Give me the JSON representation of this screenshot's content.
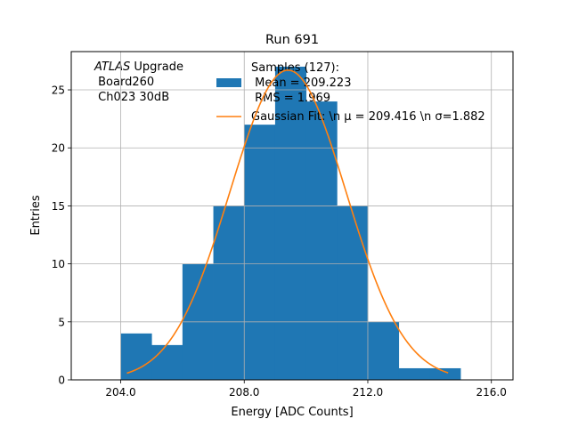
{
  "chart_data": {
    "type": "bar",
    "title": "Run 691",
    "xlabel": "Energy [ADC Counts]",
    "ylabel": "Entries",
    "xlim": [
      202.4,
      216.7
    ],
    "ylim": [
      0,
      28.3
    ],
    "xticks": [
      204.0,
      208.0,
      212.0,
      216.0
    ],
    "xtick_labels": [
      "204.0",
      "208.0",
      "212.0",
      "216.0"
    ],
    "yticks": [
      0,
      5,
      10,
      15,
      20,
      25
    ],
    "ytick_labels": [
      "0",
      "5",
      "10",
      "15",
      "20",
      "25"
    ],
    "grid": true,
    "legend_position": "top-right",
    "colors": {
      "histogram": "#1f77b4",
      "fit": "#ff7f0e"
    },
    "annotation": [
      "ATLAS Upgrade",
      " Board260",
      " Ch023 30dB"
    ],
    "annotation_italic_word": "ATLAS",
    "annotation_rest": " Upgrade",
    "histogram": {
      "name": [
        "Samples (127):",
        " Mean = 209.223",
        " RMS = 1.969"
      ],
      "bin_edges": [
        204,
        205,
        206,
        207,
        208,
        209,
        210,
        211,
        212,
        213,
        214,
        215
      ],
      "counts": [
        4,
        3,
        10,
        15,
        22,
        27,
        24,
        15,
        5,
        1,
        1
      ]
    },
    "fit": {
      "name": "Gaussian Fit: \\n μ = 209.416 \\n σ=1.882",
      "amplitude": 26.7,
      "mu": 209.416,
      "sigma": 1.882,
      "x_range": [
        204.2,
        214.6
      ]
    }
  }
}
